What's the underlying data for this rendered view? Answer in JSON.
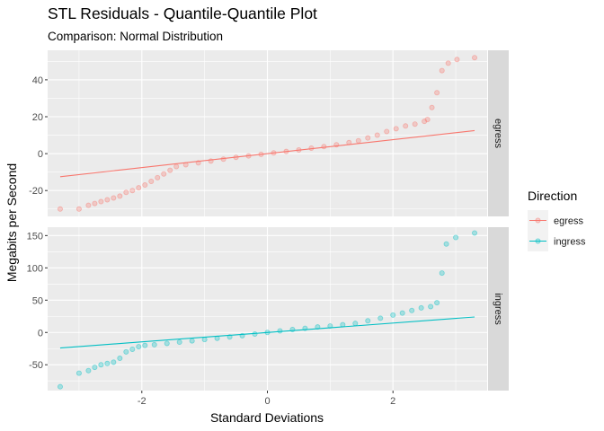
{
  "chart_data": {
    "type": "scatter",
    "title": "STL Residuals - Quantile-Quantile Plot",
    "subtitle": "Comparison: Normal Distribution",
    "xlabel": "Standard Deviations",
    "ylabel": "Megabits per Second",
    "x_ticks": [
      -2,
      0,
      2
    ],
    "x_tick_labels": [
      "-2",
      "0",
      "2"
    ],
    "xlim": [
      -3.5,
      3.5
    ],
    "legend": {
      "title": "Direction",
      "position": "right",
      "entries": [
        "egress",
        "ingress"
      ]
    },
    "colors": {
      "egress": "#F8766D",
      "ingress": "#00BFC4",
      "panel_bg": "#EBEBEB",
      "strip_bg": "#D9D9D9",
      "grid": "#FFFFFF",
      "text": "#1A1A1A",
      "tick_text": "#4D4D4D"
    },
    "panels": [
      {
        "strip_label": "egress",
        "ylim": [
          -34,
          56
        ],
        "y_ticks": [
          -20,
          0,
          20,
          40
        ],
        "y_tick_labels": [
          "-20",
          "0",
          "20",
          "40"
        ],
        "reference_line": {
          "x": [
            -3.3,
            3.3
          ],
          "y": [
            -12.5,
            12.5
          ]
        },
        "points": [
          [
            -3.3,
            -30
          ],
          [
            -3.0,
            -30
          ],
          [
            -2.85,
            -28
          ],
          [
            -2.75,
            -27
          ],
          [
            -2.65,
            -26
          ],
          [
            -2.55,
            -25
          ],
          [
            -2.45,
            -24
          ],
          [
            -2.35,
            -23
          ],
          [
            -2.25,
            -21
          ],
          [
            -2.15,
            -20
          ],
          [
            -2.05,
            -18.5
          ],
          [
            -1.95,
            -17
          ],
          [
            -1.85,
            -15
          ],
          [
            -1.75,
            -13
          ],
          [
            -1.65,
            -11
          ],
          [
            -1.55,
            -9
          ],
          [
            -1.45,
            -7
          ],
          [
            -1.3,
            -6
          ],
          [
            -1.1,
            -5
          ],
          [
            -0.9,
            -4
          ],
          [
            -0.7,
            -3
          ],
          [
            -0.5,
            -2
          ],
          [
            -0.3,
            -1.2
          ],
          [
            -0.1,
            -0.4
          ],
          [
            0.1,
            0.4
          ],
          [
            0.3,
            1.2
          ],
          [
            0.5,
            2
          ],
          [
            0.7,
            3
          ],
          [
            0.9,
            3.8
          ],
          [
            1.1,
            4.8
          ],
          [
            1.3,
            6
          ],
          [
            1.45,
            7
          ],
          [
            1.6,
            8.5
          ],
          [
            1.75,
            10
          ],
          [
            1.9,
            12
          ],
          [
            2.05,
            13.5
          ],
          [
            2.2,
            15
          ],
          [
            2.35,
            16
          ],
          [
            2.5,
            17.5
          ],
          [
            2.55,
            18.5
          ],
          [
            2.62,
            25
          ],
          [
            2.7,
            33
          ],
          [
            2.78,
            45
          ],
          [
            2.88,
            49
          ],
          [
            3.02,
            51
          ],
          [
            3.3,
            52
          ]
        ]
      },
      {
        "strip_label": "ingress",
        "ylim": [
          -90,
          163
        ],
        "y_ticks": [
          -50,
          0,
          50,
          100,
          150
        ],
        "y_tick_labels": [
          "-50",
          "0",
          "50",
          "100",
          "150"
        ],
        "reference_line": {
          "x": [
            -3.3,
            3.3
          ],
          "y": [
            -24,
            24
          ]
        },
        "points": [
          [
            -3.3,
            -84
          ],
          [
            -3.0,
            -63
          ],
          [
            -2.85,
            -59
          ],
          [
            -2.75,
            -54
          ],
          [
            -2.65,
            -50
          ],
          [
            -2.55,
            -48
          ],
          [
            -2.45,
            -46
          ],
          [
            -2.35,
            -40
          ],
          [
            -2.25,
            -30
          ],
          [
            -2.15,
            -26
          ],
          [
            -2.05,
            -22
          ],
          [
            -1.95,
            -20
          ],
          [
            -1.8,
            -19
          ],
          [
            -1.6,
            -17
          ],
          [
            -1.4,
            -15
          ],
          [
            -1.2,
            -13
          ],
          [
            -1.0,
            -11
          ],
          [
            -0.8,
            -9
          ],
          [
            -0.6,
            -7
          ],
          [
            -0.4,
            -5
          ],
          [
            -0.2,
            -2.5
          ],
          [
            0.0,
            0
          ],
          [
            0.2,
            2.5
          ],
          [
            0.4,
            4.5
          ],
          [
            0.6,
            6.5
          ],
          [
            0.8,
            8.5
          ],
          [
            1.0,
            10
          ],
          [
            1.2,
            12
          ],
          [
            1.4,
            14
          ],
          [
            1.6,
            18
          ],
          [
            1.8,
            22
          ],
          [
            2.0,
            27
          ],
          [
            2.15,
            30
          ],
          [
            2.3,
            34
          ],
          [
            2.45,
            38
          ],
          [
            2.6,
            40
          ],
          [
            2.7,
            46
          ],
          [
            2.78,
            92
          ],
          [
            2.85,
            137
          ],
          [
            3.0,
            147
          ],
          [
            3.3,
            154
          ]
        ]
      }
    ]
  }
}
